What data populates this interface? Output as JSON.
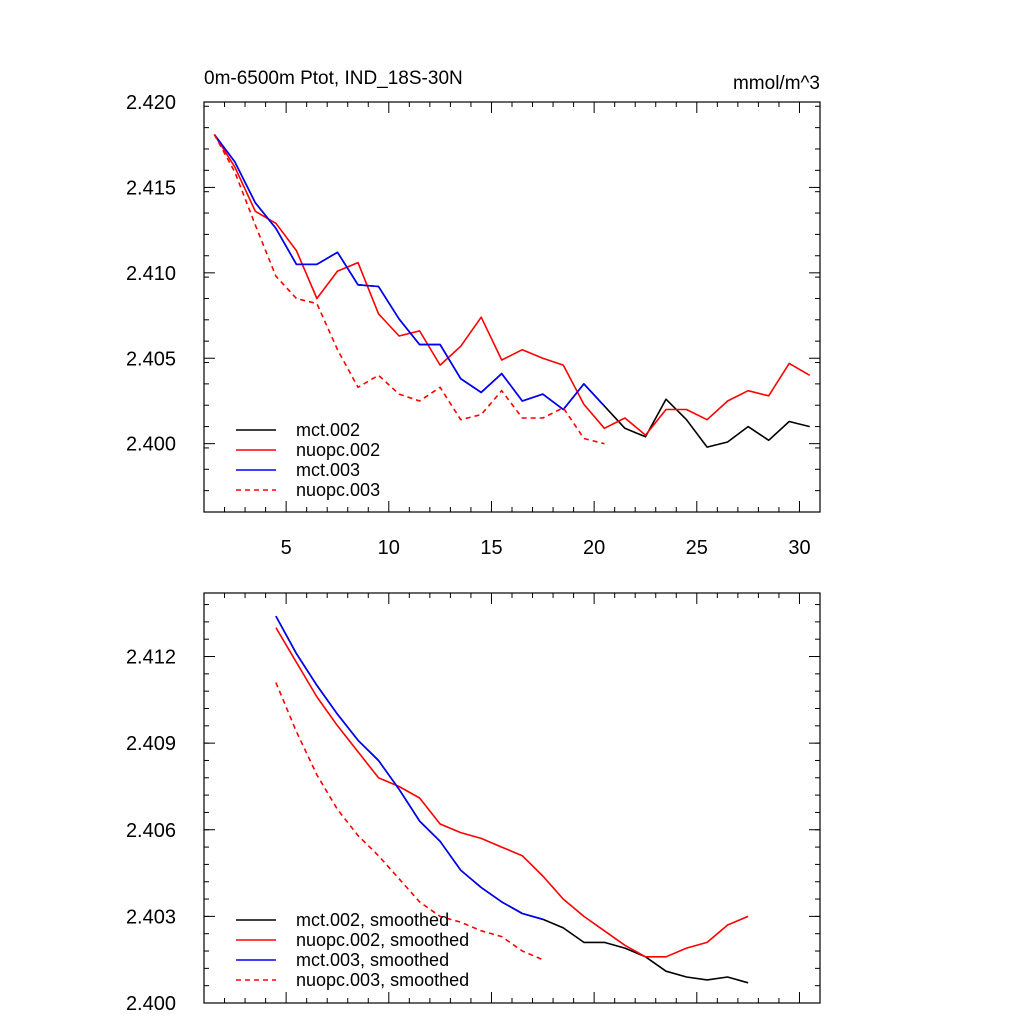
{
  "chart_data": [
    {
      "type": "line",
      "title": "0m-6500m Ptot, IND_18S-30N",
      "units_label": "mmol/m^3",
      "xlim": [
        1,
        31
      ],
      "ylim": [
        2.396,
        2.42
      ],
      "x_ticks": [
        5,
        10,
        15,
        20,
        25,
        30
      ],
      "x_tick_labels": [
        "5",
        "10",
        "15",
        "20",
        "25",
        "30"
      ],
      "y_ticks": [
        2.4,
        2.405,
        2.41,
        2.415,
        2.42
      ],
      "y_tick_labels": [
        "2.400",
        "2.405",
        "2.410",
        "2.415",
        "2.420"
      ],
      "legend_position": "bottom-left",
      "series": [
        {
          "name": "mct.002",
          "color": "#000000",
          "dash": "solid",
          "x": [
            1.5,
            2.5,
            3.5,
            4.5,
            5.5,
            6.5,
            7.5,
            8.5,
            9.5,
            10.5,
            11.5,
            12.5,
            13.5,
            14.5,
            15.5,
            16.5,
            17.5,
            18.5,
            19.5,
            20.5,
            21.5,
            22.5,
            23.5,
            24.5,
            25.5,
            26.5,
            27.5,
            28.5,
            29.5,
            30.5
          ],
          "values": [
            2.4181,
            2.4165,
            2.4141,
            2.4126,
            2.4105,
            2.4105,
            2.4112,
            2.4093,
            2.4092,
            2.4073,
            2.4058,
            2.4058,
            2.4038,
            2.403,
            2.4041,
            2.4025,
            2.4029,
            2.402,
            2.4035,
            2.4022,
            2.4009,
            2.4004,
            2.4026,
            2.4014,
            2.3998,
            2.4001,
            2.401,
            2.4002,
            2.4013,
            2.401
          ]
        },
        {
          "name": "nuopc.002",
          "color": "#ff0000",
          "dash": "solid",
          "x": [
            1.5,
            2.5,
            3.5,
            4.5,
            5.5,
            6.5,
            7.5,
            8.5,
            9.5,
            10.5,
            11.5,
            12.5,
            13.5,
            14.5,
            15.5,
            16.5,
            17.5,
            18.5,
            19.5,
            20.5,
            21.5,
            22.5,
            23.5,
            24.5,
            25.5,
            26.5,
            27.5,
            28.5,
            29.5,
            30.5
          ],
          "values": [
            2.4181,
            2.4162,
            2.4136,
            2.4129,
            2.4113,
            2.4085,
            2.4101,
            2.4106,
            2.4076,
            2.4063,
            2.4066,
            2.4046,
            2.4057,
            2.4074,
            2.4049,
            2.4055,
            2.405,
            2.4046,
            2.4023,
            2.4009,
            2.4015,
            2.4005,
            2.402,
            2.402,
            2.4014,
            2.4025,
            2.4031,
            2.4028,
            2.4047,
            2.404
          ]
        },
        {
          "name": "mct.003",
          "color": "#0000ff",
          "dash": "solid",
          "x": [
            1.5,
            2.5,
            3.5,
            4.5,
            5.5,
            6.5,
            7.5,
            8.5,
            9.5,
            10.5,
            11.5,
            12.5,
            13.5,
            14.5,
            15.5,
            16.5,
            17.5,
            18.5,
            19.5,
            20.5
          ],
          "values": [
            2.4181,
            2.4165,
            2.4141,
            2.4126,
            2.4105,
            2.4105,
            2.4112,
            2.4093,
            2.4092,
            2.4073,
            2.4058,
            2.4058,
            2.4038,
            2.403,
            2.4041,
            2.4025,
            2.4029,
            2.402,
            2.4035,
            2.4022
          ]
        },
        {
          "name": "nuopc.003",
          "color": "#ff0000",
          "dash": "dashed",
          "x": [
            1.5,
            2.5,
            3.5,
            4.5,
            5.5,
            6.5,
            7.5,
            8.5,
            9.5,
            10.5,
            11.5,
            12.5,
            13.5,
            14.5,
            15.5,
            16.5,
            17.5,
            18.5,
            19.5,
            20.5
          ],
          "values": [
            2.4181,
            2.4159,
            2.4128,
            2.4098,
            2.4085,
            2.4082,
            2.4055,
            2.4033,
            2.404,
            2.4029,
            2.4025,
            2.4033,
            2.4014,
            2.4017,
            2.4031,
            2.4015,
            2.4015,
            2.4021,
            2.4003,
            2.4
          ]
        }
      ]
    },
    {
      "type": "line",
      "title": "",
      "xlim": [
        1,
        31
      ],
      "ylim": [
        2.4,
        2.4142
      ],
      "x_ticks": [
        5,
        10,
        15,
        20,
        25,
        30
      ],
      "y_ticks": [
        2.4,
        2.403,
        2.406,
        2.409,
        2.412
      ],
      "y_tick_labels": [
        "2.400",
        "2.403",
        "2.406",
        "2.409",
        "2.412"
      ],
      "legend_position": "bottom-left",
      "series": [
        {
          "name": "mct.002, smoothed",
          "color": "#000000",
          "dash": "solid",
          "x": [
            4.5,
            5.5,
            6.5,
            7.5,
            8.5,
            9.5,
            10.5,
            11.5,
            12.5,
            13.5,
            14.5,
            15.5,
            16.5,
            17.5,
            18.5,
            19.5,
            20.5,
            21.5,
            22.5,
            23.5,
            24.5,
            25.5,
            26.5,
            27.5
          ],
          "values": [
            2.4134,
            2.4121,
            2.411,
            2.41,
            2.4091,
            2.4084,
            2.4074,
            2.4063,
            2.4056,
            2.4046,
            2.404,
            2.4035,
            2.4031,
            2.4029,
            2.4026,
            2.4021,
            2.4021,
            2.4019,
            2.4016,
            2.4011,
            2.4009,
            2.4008,
            2.4009,
            2.4007
          ]
        },
        {
          "name": "nuopc.002, smoothed",
          "color": "#ff0000",
          "dash": "solid",
          "x": [
            4.5,
            5.5,
            6.5,
            7.5,
            8.5,
            9.5,
            10.5,
            11.5,
            12.5,
            13.5,
            14.5,
            15.5,
            16.5,
            17.5,
            18.5,
            19.5,
            20.5,
            21.5,
            22.5,
            23.5,
            24.5,
            25.5,
            26.5,
            27.5
          ],
          "values": [
            2.413,
            2.4118,
            2.4106,
            2.4096,
            2.4087,
            2.4078,
            2.4075,
            2.4071,
            2.4062,
            2.4059,
            2.4057,
            2.4054,
            2.4051,
            2.4044,
            2.4036,
            2.403,
            2.4025,
            2.402,
            2.4016,
            2.4016,
            2.4019,
            2.4021,
            2.4027,
            2.403
          ]
        },
        {
          "name": "mct.003, smoothed",
          "color": "#0000ff",
          "dash": "solid",
          "x": [
            4.5,
            5.5,
            6.5,
            7.5,
            8.5,
            9.5,
            10.5,
            11.5,
            12.5,
            13.5,
            14.5,
            15.5,
            16.5,
            17.5
          ],
          "values": [
            2.4134,
            2.4121,
            2.411,
            2.41,
            2.4091,
            2.4084,
            2.4074,
            2.4063,
            2.4056,
            2.4046,
            2.404,
            2.4035,
            2.4031,
            2.4029
          ]
        },
        {
          "name": "nuopc.003, smoothed",
          "color": "#ff0000",
          "dash": "dashed",
          "x": [
            4.5,
            5.5,
            6.5,
            7.5,
            8.5,
            9.5,
            10.5,
            11.5,
            12.5,
            13.5,
            14.5,
            15.5,
            16.5,
            17.5
          ],
          "values": [
            2.4111,
            2.4094,
            2.4079,
            2.4067,
            2.4058,
            2.4051,
            2.4043,
            2.4035,
            2.403,
            2.4028,
            2.4025,
            2.4023,
            2.4018,
            2.4015
          ]
        }
      ]
    }
  ]
}
